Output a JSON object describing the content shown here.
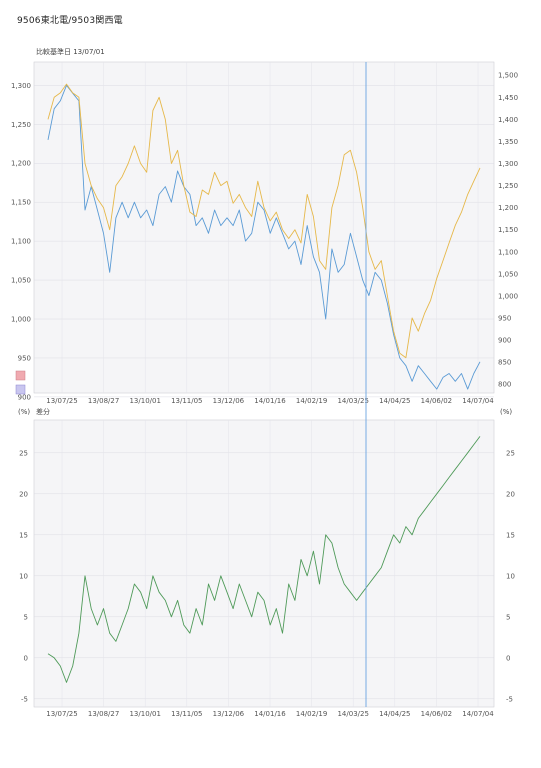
{
  "page": {
    "title": "9506東北電/9503関西電"
  },
  "chart_data": [
    {
      "type": "line",
      "header": "比較基準日 13/07/01",
      "x_tick_labels": [
        "13/07/25",
        "13/08/27",
        "13/10/01",
        "13/11/05",
        "13/12/06",
        "14/01/16",
        "14/02/19",
        "14/03/25",
        "14/04/25",
        "14/06/02",
        "14/07/04"
      ],
      "ylim_left": [
        905,
        1330
      ],
      "yticks_left": [
        "1,300",
        "1,250",
        "1,200",
        "1,150",
        "1,100",
        "1,050",
        "1,000",
        "950",
        "900"
      ],
      "ylim_right": [
        780,
        1530
      ],
      "yticks_right": [
        "1,500",
        "1,450",
        "1,400",
        "1,350",
        "1,300",
        "1,250",
        "1,200",
        "1,150",
        "1,100",
        "1,050",
        "1,000",
        "950",
        "900",
        "850",
        "800"
      ],
      "grid": true,
      "marker_date": "14/03/25",
      "series": [
        {
          "color": "#5b9bd5",
          "axis": "left",
          "x": [
            0,
            1,
            2,
            3,
            4,
            5,
            6,
            7,
            8,
            9,
            10,
            11,
            12,
            13,
            14,
            15,
            16,
            17,
            18,
            19,
            20,
            21,
            22,
            23,
            24,
            25,
            26,
            27,
            28,
            29,
            30,
            31,
            32,
            33,
            34,
            35,
            36,
            37,
            38,
            39,
            40,
            41,
            42,
            43,
            44,
            45,
            46,
            47,
            48,
            49,
            50,
            51,
            52,
            53,
            54,
            55,
            56,
            57,
            58,
            59,
            60,
            61,
            62,
            63,
            64,
            65,
            66,
            67,
            68,
            69,
            70
          ],
          "values": [
            1230,
            1270,
            1280,
            1300,
            1290,
            1280,
            1140,
            1170,
            1140,
            1110,
            1060,
            1130,
            1150,
            1130,
            1150,
            1130,
            1140,
            1120,
            1160,
            1170,
            1150,
            1190,
            1170,
            1160,
            1120,
            1130,
            1110,
            1140,
            1120,
            1130,
            1120,
            1140,
            1100,
            1110,
            1150,
            1140,
            1110,
            1130,
            1110,
            1090,
            1100,
            1070,
            1120,
            1080,
            1060,
            1000,
            1090,
            1060,
            1070,
            1110,
            1080,
            1050,
            1030,
            1060,
            1050,
            1020,
            980,
            950,
            940,
            920,
            940,
            930,
            920,
            910,
            925,
            930,
            920,
            930,
            910,
            930,
            945
          ]
        },
        {
          "color": "#e6b84a",
          "axis": "right",
          "x": [
            0,
            1,
            2,
            3,
            4,
            5,
            6,
            7,
            8,
            9,
            10,
            11,
            12,
            13,
            14,
            15,
            16,
            17,
            18,
            19,
            20,
            21,
            22,
            23,
            24,
            25,
            26,
            27,
            28,
            29,
            30,
            31,
            32,
            33,
            34,
            35,
            36,
            37,
            38,
            39,
            40,
            41,
            42,
            43,
            44,
            45,
            46,
            47,
            48,
            49,
            50,
            51,
            52,
            53,
            54,
            55,
            56,
            57,
            58,
            59,
            60,
            61,
            62,
            63,
            64,
            65,
            66,
            67,
            68,
            69,
            70
          ],
          "values": [
            1400,
            1450,
            1460,
            1480,
            1460,
            1450,
            1300,
            1250,
            1220,
            1200,
            1150,
            1250,
            1270,
            1300,
            1340,
            1300,
            1280,
            1420,
            1450,
            1400,
            1300,
            1330,
            1250,
            1190,
            1180,
            1240,
            1230,
            1280,
            1250,
            1260,
            1210,
            1230,
            1200,
            1180,
            1260,
            1200,
            1170,
            1190,
            1150,
            1130,
            1150,
            1120,
            1230,
            1180,
            1080,
            1060,
            1200,
            1250,
            1320,
            1330,
            1280,
            1200,
            1100,
            1060,
            1080,
            1000,
            920,
            870,
            860,
            950,
            920,
            960,
            990,
            1040,
            1080,
            1120,
            1160,
            1190,
            1230,
            1260,
            1290
          ]
        }
      ]
    },
    {
      "type": "line",
      "header": "差分",
      "x_tick_labels": [
        "13/07/25",
        "13/08/27",
        "13/10/01",
        "13/11/05",
        "13/12/06",
        "14/01/16",
        "14/02/19",
        "14/03/25",
        "14/04/25",
        "14/06/02",
        "14/07/04"
      ],
      "ylim": [
        -6,
        29
      ],
      "yticks": [
        "25",
        "20",
        "15",
        "10",
        "5",
        "0",
        "-5"
      ],
      "unit_label": "(%)",
      "grid": true,
      "marker_date": "14/03/25",
      "series": [
        {
          "color": "#4f9a59",
          "x": [
            0,
            1,
            2,
            3,
            4,
            5,
            6,
            7,
            8,
            9,
            10,
            11,
            12,
            13,
            14,
            15,
            16,
            17,
            18,
            19,
            20,
            21,
            22,
            23,
            24,
            25,
            26,
            27,
            28,
            29,
            30,
            31,
            32,
            33,
            34,
            35,
            36,
            37,
            38,
            39,
            40,
            41,
            42,
            43,
            44,
            45,
            46,
            47,
            48,
            49,
            50,
            51,
            52,
            53,
            54,
            55,
            56,
            57,
            58,
            59,
            60,
            61,
            62,
            63,
            64,
            65,
            66,
            67,
            68,
            69,
            70
          ],
          "values": [
            0.5,
            0,
            -1,
            -3,
            -1,
            3,
            10,
            6,
            4,
            6,
            3,
            2,
            4,
            6,
            9,
            8,
            6,
            10,
            8,
            7,
            5,
            7,
            4,
            3,
            6,
            4,
            9,
            7,
            10,
            8,
            6,
            9,
            7,
            5,
            8,
            7,
            4,
            6,
            3,
            9,
            7,
            12,
            10,
            13,
            9,
            15,
            14,
            11,
            9,
            8,
            7,
            8,
            9,
            10,
            11,
            13,
            15,
            14,
            16,
            15,
            17,
            18,
            19,
            20,
            21,
            22,
            23,
            24,
            25,
            26,
            27
          ]
        }
      ]
    }
  ]
}
